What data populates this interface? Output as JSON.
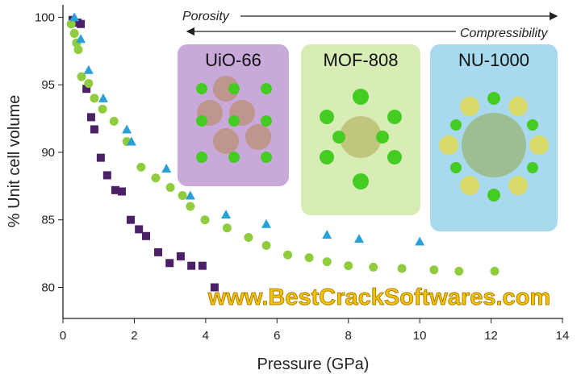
{
  "chart_data": {
    "type": "scatter",
    "x_label": "Pressure (GPa)",
    "y_label": "% Unit cell volume",
    "xlim": [
      0,
      14
    ],
    "ylim": [
      77.7,
      100.8
    ],
    "xticks": [
      0,
      2,
      4,
      6,
      8,
      10,
      12,
      14
    ],
    "yticks": [
      80,
      85,
      90,
      95,
      100
    ],
    "annotations": [
      "Porosity",
      "Compressibility",
      "www.BestCrackSoftwares.com"
    ],
    "series": [
      {
        "name": "UiO-66",
        "color": "#4b2067",
        "marker": "square",
        "x": [
          0.27,
          0.41,
          0.5,
          0.66,
          0.79,
          0.88,
          1.06,
          1.24,
          1.47,
          1.65,
          1.9,
          2.13,
          2.33,
          2.67,
          2.99,
          3.3,
          3.6,
          3.91,
          4.25
        ],
        "values": [
          99.8,
          99.6,
          99.5,
          94.7,
          92.6,
          91.7,
          89.6,
          88.3,
          87.2,
          87.1,
          85.0,
          84.3,
          83.8,
          82.6,
          81.8,
          82.3,
          81.6,
          81.6,
          80.0
        ]
      },
      {
        "name": "MOF-808",
        "color": "#8fcc3e",
        "marker": "circle",
        "x": [
          0.23,
          0.32,
          0.38,
          0.43,
          0.52,
          0.72,
          0.88,
          1.11,
          1.43,
          1.79,
          2.19,
          2.6,
          3.01,
          3.35,
          3.57,
          3.98,
          4.6,
          5.2,
          5.7,
          6.3,
          6.9,
          7.4,
          8.0,
          8.7,
          9.5,
          10.4,
          11.1,
          12.1
        ],
        "values": [
          99.5,
          98.8,
          98.1,
          97.6,
          95.6,
          95.1,
          94.0,
          93.2,
          92.3,
          90.8,
          88.9,
          88.1,
          87.4,
          86.8,
          86.0,
          85.0,
          84.4,
          83.7,
          83.1,
          82.4,
          82.2,
          81.9,
          81.6,
          81.5,
          81.4,
          81.3,
          81.2,
          81.2
        ]
      },
      {
        "name": "NU-1000",
        "color": "#2aa0d8",
        "marker": "triangle",
        "x": [
          0.32,
          0.5,
          0.72,
          1.13,
          1.79,
          1.92,
          2.9,
          3.57,
          4.57,
          5.7,
          7.4,
          8.3,
          10.0
        ],
        "values": [
          100.0,
          98.4,
          96.1,
          94.0,
          91.7,
          90.8,
          88.8,
          86.8,
          85.4,
          84.7,
          83.9,
          83.6,
          83.4
        ]
      }
    ]
  }
}
